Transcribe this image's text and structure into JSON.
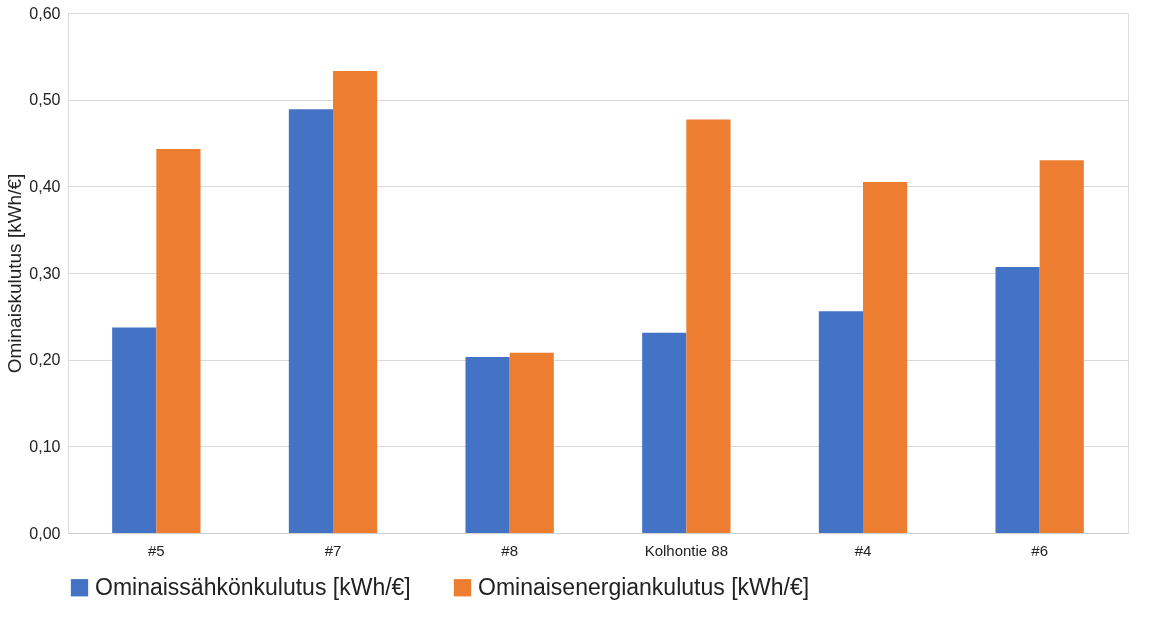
{
  "chart_data": {
    "type": "bar",
    "ylabel": "Ominaiskulutus [kWh/€]",
    "categories": [
      "#5",
      "#7",
      "#8",
      "Kolhontie 88",
      "#4",
      "#6"
    ],
    "series": [
      {
        "name": "Ominaissähkönkulutus [kWh/€]",
        "color": "#4472c4",
        "values": [
          0.237,
          0.489,
          0.203,
          0.231,
          0.256,
          0.307
        ]
      },
      {
        "name": "Ominaisenergiankulutus [kWh/€]",
        "color": "#ed7d31",
        "values": [
          0.443,
          0.533,
          0.208,
          0.477,
          0.405,
          0.43
        ]
      }
    ],
    "ylim": [
      0,
      0.6
    ],
    "yticks": [
      {
        "value": 0,
        "label": "0,00"
      },
      {
        "value": 0.1,
        "label": "0,10"
      },
      {
        "value": 0.2,
        "label": "0,20"
      },
      {
        "value": 0.3,
        "label": "0,30"
      },
      {
        "value": 0.4,
        "label": "0,40"
      },
      {
        "value": 0.5,
        "label": "0,50"
      },
      {
        "value": 0.6,
        "label": "0,60"
      }
    ],
    "grid": "y",
    "legend": "bottom"
  }
}
